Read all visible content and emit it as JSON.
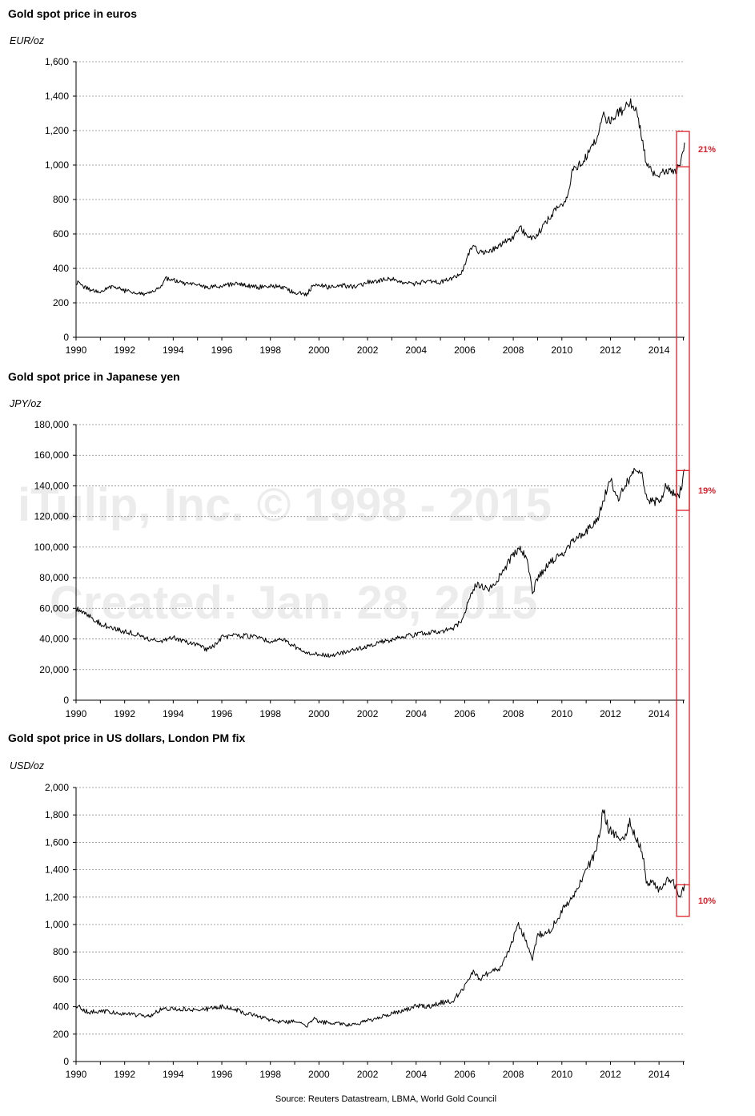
{
  "watermark": {
    "line1": "iTulip, Inc. © 1998 - 2015",
    "line2": "Created: Jan. 28, 2015"
  },
  "source": "Source: Reuters Datastream, LBMA, World Gold Council",
  "colors": {
    "line": "#000000",
    "grid": "#8a8a8a",
    "highlight": "#e0202a",
    "watermark": "#ececec"
  },
  "chart_data": [
    {
      "type": "line",
      "title": "Gold spot price in euros",
      "ylabel": "EUR/oz",
      "ylim": [
        0,
        1600
      ],
      "yticks": [
        0,
        200,
        400,
        600,
        800,
        1000,
        1200,
        1400,
        1600
      ],
      "ytick_labels": [
        "0",
        "200",
        "400",
        "600",
        "800",
        "1,000",
        "1,200",
        "1,400",
        "1,600"
      ],
      "xlim": [
        1990,
        2015.05
      ],
      "xticks": [
        1990,
        1992,
        1994,
        1996,
        1998,
        2000,
        2002,
        2004,
        2006,
        2008,
        2010,
        2012,
        2014
      ],
      "grid": true,
      "annotation": {
        "label": "21%",
        "from": 990,
        "to": 1195
      },
      "series": [
        {
          "x": [
            1990.0,
            1990.5,
            1991.0,
            1991.5,
            1992.0,
            1992.5,
            1993.0,
            1993.5,
            1993.7,
            1994.0,
            1994.5,
            1995.0,
            1995.5,
            1996.0,
            1996.5,
            1997.0,
            1997.5,
            1998.0,
            1998.5,
            1999.0,
            1999.5,
            1999.75,
            2000.0,
            2000.5,
            2001.0,
            2001.5,
            2002.0,
            2002.5,
            2003.0,
            2003.5,
            2004.0,
            2004.5,
            2005.0,
            2005.5,
            2005.9,
            2006.1,
            2006.35,
            2006.6,
            2007.0,
            2007.5,
            2008.0,
            2008.3,
            2008.6,
            2008.9,
            2009.2,
            2009.5,
            2009.9,
            2010.2,
            2010.45,
            2010.7,
            2011.0,
            2011.4,
            2011.7,
            2011.9,
            2012.2,
            2012.5,
            2012.8,
            2013.1,
            2013.3,
            2013.5,
            2013.8,
            2014.0,
            2014.3,
            2014.6,
            2014.85,
            2015.0,
            2015.05
          ],
          "y": [
            320,
            280,
            260,
            300,
            270,
            260,
            250,
            300,
            340,
            330,
            310,
            300,
            290,
            300,
            310,
            300,
            290,
            300,
            290,
            260,
            250,
            300,
            300,
            290,
            300,
            290,
            320,
            330,
            340,
            320,
            310,
            330,
            320,
            340,
            380,
            460,
            540,
            490,
            500,
            540,
            580,
            640,
            570,
            580,
            640,
            700,
            760,
            800,
            980,
            1000,
            1050,
            1150,
            1300,
            1250,
            1290,
            1320,
            1370,
            1300,
            1150,
            1000,
            950,
            950,
            970,
            960,
            990,
            1070,
            1130
          ]
        }
      ]
    },
    {
      "type": "line",
      "title": "Gold spot price in Japanese yen",
      "ylabel": "JPY/oz",
      "ylim": [
        0,
        180000
      ],
      "yticks": [
        0,
        20000,
        40000,
        60000,
        80000,
        100000,
        120000,
        140000,
        160000,
        180000
      ],
      "ytick_labels": [
        "0",
        "20,000",
        "40,000",
        "60,000",
        "80,000",
        "100,000",
        "120,000",
        "140,000",
        "160,000",
        "180,000"
      ],
      "xlim": [
        1990,
        2015.05
      ],
      "xticks": [
        1990,
        1992,
        1994,
        1996,
        1998,
        2000,
        2002,
        2004,
        2006,
        2008,
        2010,
        2012,
        2014
      ],
      "grid": true,
      "annotation": {
        "label": "19%",
        "from": 124000,
        "to": 150000
      },
      "series": [
        {
          "x": [
            1990.0,
            1990.3,
            1990.6,
            1991.0,
            1991.5,
            1992.0,
            1992.5,
            1993.0,
            1993.5,
            1994.0,
            1994.5,
            1995.0,
            1995.4,
            1995.8,
            1996.0,
            1996.5,
            1997.0,
            1997.5,
            1998.0,
            1998.5,
            1999.0,
            1999.5,
            2000.0,
            2000.5,
            2001.0,
            2001.5,
            2002.0,
            2002.5,
            2003.0,
            2003.5,
            2004.0,
            2004.5,
            2005.0,
            2005.5,
            2005.9,
            2006.2,
            2006.5,
            2007.0,
            2007.5,
            2008.0,
            2008.3,
            2008.6,
            2008.8,
            2009.0,
            2009.5,
            2010.0,
            2010.5,
            2011.0,
            2011.5,
            2011.8,
            2012.0,
            2012.3,
            2012.6,
            2013.0,
            2013.3,
            2013.5,
            2013.8,
            2014.0,
            2014.3,
            2014.6,
            2014.85,
            2015.0,
            2015.05
          ],
          "y": [
            60000,
            58000,
            55000,
            50000,
            47000,
            45000,
            43000,
            40000,
            38000,
            41000,
            38000,
            36000,
            33000,
            37000,
            41000,
            42000,
            42000,
            41000,
            38000,
            40000,
            35000,
            31000,
            30000,
            29000,
            31000,
            33000,
            35000,
            38000,
            39000,
            42000,
            43000,
            44000,
            45000,
            47000,
            52000,
            68000,
            76000,
            72000,
            82000,
            95000,
            100000,
            90000,
            70000,
            80000,
            90000,
            95000,
            105000,
            110000,
            120000,
            135000,
            145000,
            132000,
            140000,
            150000,
            148000,
            130000,
            130000,
            130000,
            140000,
            135000,
            135000,
            145000,
            150000
          ]
        }
      ]
    },
    {
      "type": "line",
      "title": "Gold spot price in US dollars, London PM fix",
      "ylabel": "USD/oz",
      "ylim": [
        0,
        2000
      ],
      "yticks": [
        0,
        200,
        400,
        600,
        800,
        1000,
        1200,
        1400,
        1600,
        1800,
        2000
      ],
      "ytick_labels": [
        "0",
        "200",
        "400",
        "600",
        "800",
        "1,000",
        "1,200",
        "1,400",
        "1,600",
        "1,800",
        "2,000"
      ],
      "xlim": [
        1990,
        2015.05
      ],
      "xticks": [
        1990,
        1992,
        1994,
        1996,
        1998,
        2000,
        2002,
        2004,
        2006,
        2008,
        2010,
        2012,
        2014
      ],
      "grid": true,
      "annotation": {
        "label": "10%",
        "from": 1060,
        "to": 1290
      },
      "series": [
        {
          "x": [
            1990.0,
            1990.5,
            1991.0,
            1991.5,
            1992.0,
            1992.5,
            1993.0,
            1993.5,
            1994.0,
            1994.5,
            1995.0,
            1995.5,
            1996.0,
            1996.5,
            1997.0,
            1997.5,
            1998.0,
            1998.5,
            1999.0,
            1999.5,
            1999.8,
            2000.0,
            2000.5,
            2001.0,
            2001.5,
            2002.0,
            2002.5,
            2003.0,
            2003.5,
            2004.0,
            2004.5,
            2005.0,
            2005.5,
            2006.0,
            2006.35,
            2006.6,
            2007.0,
            2007.5,
            2008.0,
            2008.2,
            2008.5,
            2008.8,
            2009.0,
            2009.5,
            2010.0,
            2010.5,
            2011.0,
            2011.3,
            2011.55,
            2011.7,
            2011.9,
            2012.2,
            2012.5,
            2012.8,
            2013.0,
            2013.3,
            2013.5,
            2013.8,
            2014.0,
            2014.3,
            2014.6,
            2014.85,
            2015.0,
            2015.05
          ],
          "y": [
            410,
            360,
            370,
            360,
            350,
            340,
            330,
            380,
            385,
            385,
            380,
            385,
            400,
            385,
            350,
            330,
            300,
            290,
            290,
            260,
            320,
            290,
            280,
            270,
            270,
            300,
            320,
            350,
            370,
            410,
            400,
            430,
            440,
            550,
            650,
            600,
            650,
            680,
            900,
            1000,
            900,
            750,
            920,
            950,
            1100,
            1200,
            1400,
            1500,
            1650,
            1850,
            1700,
            1650,
            1600,
            1750,
            1650,
            1550,
            1300,
            1300,
            1250,
            1320,
            1300,
            1200,
            1250,
            1280
          ]
        }
      ]
    }
  ]
}
